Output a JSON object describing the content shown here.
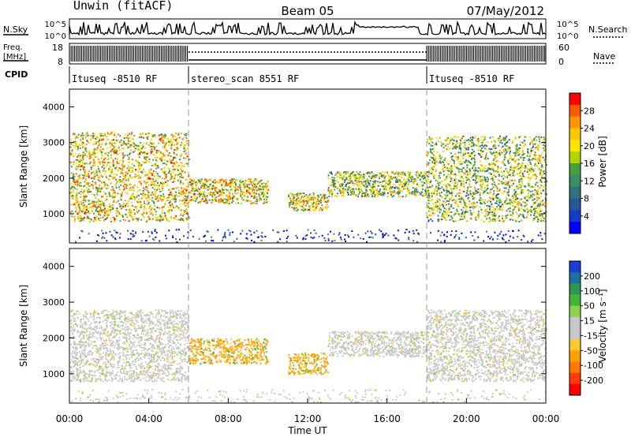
{
  "header": {
    "station": "Unwin (fitACF)",
    "beam": "Beam 05",
    "date": "07/May/2012"
  },
  "strips": {
    "nsky_label": "N.Sky",
    "nsearch_label": "N.Search",
    "nsky_ticks": [
      "10^5",
      "10^0"
    ],
    "nsearch_ticks": [
      "10^5",
      "10^0"
    ],
    "freq_label_top": "Freq.",
    "freq_label_bottom": "[MHz]",
    "freq_ticks": [
      "18",
      "8"
    ],
    "nave_label": "Nave",
    "nave_ticks": [
      "60",
      "0"
    ],
    "cpid_label": "CPID",
    "cpid_segments": [
      {
        "label": "Ituseq -8510 RF",
        "start_hour": 0,
        "end_hour": 6
      },
      {
        "label": "stereo_scan 8551 RF",
        "start_hour": 6,
        "end_hour": 18
      },
      {
        "label": "Ituseq -8510 RF",
        "start_hour": 18,
        "end_hour": 24
      }
    ]
  },
  "power_panel": {
    "ylabel": "Slant Range [km]",
    "colorbar_label": "Power [dB]",
    "colorbar_ticks": [
      "28",
      "24",
      "20",
      "16",
      "12",
      "8",
      "4"
    ],
    "colors": [
      "#ff0000",
      "#ff5a00",
      "#ff9600",
      "#ffc800",
      "#ffe600",
      "#b4d200",
      "#46a03c",
      "#3c8c64",
      "#2d7378",
      "#24589b",
      "#143cc8",
      "#0000ff"
    ]
  },
  "velocity_panel": {
    "ylabel": "Slant Range [km]",
    "colorbar_label": "Velocity [m s⁻¹]",
    "colorbar_ticks": [
      "200",
      "100",
      "50",
      "15",
      "-15",
      "-50",
      "-100",
      "-200"
    ],
    "colors": [
      "#1e3cdc",
      "#1e6ea0",
      "#2d9650",
      "#46b43c",
      "#8cd250",
      "#c8c8c8",
      "#c8c8c8",
      "#ffc832",
      "#ffa000",
      "#ff7800",
      "#ff3c00",
      "#ff0000"
    ]
  },
  "chart_data": [
    {
      "type": "heatmap",
      "name": "Power",
      "xlabel": "Time UT",
      "ylabel": "Slant Range [km]",
      "xlim": [
        0,
        24
      ],
      "ylim": [
        180,
        4500
      ],
      "yticks": [
        1000,
        2000,
        3000,
        4000
      ],
      "xticks": [
        "00:00",
        "04:00",
        "08:00",
        "12:00",
        "16:00",
        "20:00",
        "00:00"
      ],
      "colorbar": {
        "label": "Power [dB]",
        "ticks": [
          4,
          8,
          12,
          16,
          20,
          24,
          28
        ],
        "range": [
          0,
          30
        ]
      },
      "features": [
        {
          "feature": "broad backscatter band",
          "hours": [
            0,
            6
          ],
          "range_km": [
            800,
            3300
          ],
          "peak_db": 28
        },
        {
          "feature": "rising band",
          "hours": [
            6,
            10
          ],
          "range_km": [
            1300,
            2000
          ],
          "peak_db": 28
        },
        {
          "feature": "intense patch",
          "hours": [
            11,
            13
          ],
          "range_km": [
            1100,
            1600
          ],
          "peak_db": 28
        },
        {
          "feature": "echo band",
          "hours": [
            13,
            18
          ],
          "range_km": [
            1500,
            2200
          ],
          "peak_db": 24
        },
        {
          "feature": "broad backscatter band",
          "hours": [
            18,
            24
          ],
          "range_km": [
            800,
            3200
          ],
          "peak_db": 24
        }
      ]
    },
    {
      "type": "heatmap",
      "name": "Velocity",
      "xlabel": "Time UT",
      "ylabel": "Slant Range [km]",
      "xlim": [
        0,
        24
      ],
      "ylim": [
        180,
        4500
      ],
      "yticks": [
        1000,
        2000,
        3000,
        4000
      ],
      "xticks": [
        "00:00",
        "04:00",
        "08:00",
        "12:00",
        "16:00",
        "20:00",
        "00:00"
      ],
      "colorbar": {
        "label": "Velocity [m s⁻¹]",
        "ticks": [
          200,
          100,
          50,
          15,
          -15,
          -50,
          -100,
          -200
        ],
        "range": [
          -250,
          250
        ]
      },
      "features": [
        {
          "feature": "ground scatter (low velocity)",
          "hours": [
            0,
            6
          ],
          "range_km": [
            800,
            2800
          ],
          "velocity": 0
        },
        {
          "feature": "negative velocity band",
          "hours": [
            6,
            10
          ],
          "range_km": [
            1300,
            2000
          ],
          "velocity": -40
        },
        {
          "feature": "mixed velocity patch",
          "hours": [
            11,
            13
          ],
          "range_km": [
            1000,
            1600
          ],
          "velocity": -40
        },
        {
          "feature": "low velocity band",
          "hours": [
            13,
            18
          ],
          "range_km": [
            1500,
            2200
          ],
          "velocity": 0
        },
        {
          "feature": "ground scatter (low velocity)",
          "hours": [
            18,
            24
          ],
          "range_km": [
            800,
            2800
          ],
          "velocity": 0
        }
      ]
    }
  ],
  "axis": {
    "xlabel": "Time UT",
    "xticks": [
      "00:00",
      "04:00",
      "08:00",
      "12:00",
      "16:00",
      "20:00",
      "00:00"
    ],
    "yticks": [
      "1000",
      "2000",
      "3000",
      "4000"
    ]
  }
}
